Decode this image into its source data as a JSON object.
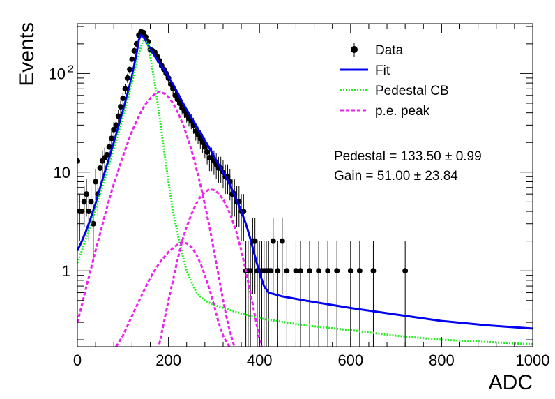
{
  "chart_data": {
    "type": "scatter",
    "xlabel": "ADC",
    "ylabel": "Events",
    "xlim": [
      0,
      1000
    ],
    "ylim": [
      0.17,
      320
    ],
    "yscale": "log",
    "x_ticks": [
      {
        "value": 0,
        "label": "0"
      },
      {
        "value": 200,
        "label": "200"
      },
      {
        "value": 400,
        "label": "400"
      },
      {
        "value": 600,
        "label": "600"
      },
      {
        "value": 800,
        "label": "800"
      },
      {
        "value": 1000,
        "label": "1000"
      }
    ],
    "y_ticks": [
      {
        "value": 1,
        "label": "1",
        "sup": ""
      },
      {
        "value": 10,
        "label": "10",
        "sup": ""
      },
      {
        "value": 100,
        "label": "10",
        "sup": "2"
      }
    ],
    "legend": {
      "position": "top-right",
      "entries": [
        {
          "label": "Data",
          "style": "marker",
          "color": "#000000"
        },
        {
          "label": "Fit",
          "style": "solid",
          "color": "#0000ee"
        },
        {
          "label": "Pedestal CB",
          "style": "dotted",
          "color": "#22ee22"
        },
        {
          "label": "p.e. peak",
          "style": "dashed",
          "color": "#ee22ee"
        }
      ]
    },
    "annotations": [
      {
        "text": "Pedestal = 133.50",
        "pm": "±",
        "value": "0.99"
      },
      {
        "text": "Gain = 51.00",
        "pm": "±",
        "value": "23.84"
      }
    ],
    "data_points": {
      "name": "Data",
      "points": [
        [
          0,
          13
        ],
        [
          5,
          4
        ],
        [
          10,
          4
        ],
        [
          15,
          5
        ],
        [
          20,
          6
        ],
        [
          25,
          4
        ],
        [
          30,
          5
        ],
        [
          35,
          3
        ],
        [
          40,
          8
        ],
        [
          45,
          6
        ],
        [
          50,
          11
        ],
        [
          55,
          13
        ],
        [
          60,
          14
        ],
        [
          65,
          15
        ],
        [
          70,
          18
        ],
        [
          75,
          22
        ],
        [
          80,
          27
        ],
        [
          85,
          30
        ],
        [
          90,
          37
        ],
        [
          95,
          46
        ],
        [
          100,
          56
        ],
        [
          105,
          70
        ],
        [
          110,
          90
        ],
        [
          115,
          110
        ],
        [
          120,
          140
        ],
        [
          125,
          170
        ],
        [
          130,
          200
        ],
        [
          135,
          245
        ],
        [
          140,
          265
        ],
        [
          145,
          260
        ],
        [
          150,
          235
        ],
        [
          155,
          210
        ],
        [
          160,
          175
        ],
        [
          165,
          170
        ],
        [
          170,
          165
        ],
        [
          175,
          150
        ],
        [
          180,
          135
        ],
        [
          185,
          120
        ],
        [
          190,
          110
        ],
        [
          195,
          100
        ],
        [
          200,
          90
        ],
        [
          205,
          78
        ],
        [
          210,
          70
        ],
        [
          215,
          60
        ],
        [
          220,
          55
        ],
        [
          225,
          50
        ],
        [
          230,
          45
        ],
        [
          235,
          42
        ],
        [
          240,
          38
        ],
        [
          245,
          35
        ],
        [
          250,
          33
        ],
        [
          255,
          30
        ],
        [
          260,
          26
        ],
        [
          265,
          24
        ],
        [
          270,
          22
        ],
        [
          275,
          20
        ],
        [
          280,
          18
        ],
        [
          285,
          16
        ],
        [
          290,
          14
        ],
        [
          295,
          14
        ],
        [
          300,
          13
        ],
        [
          305,
          12
        ],
        [
          310,
          11
        ],
        [
          315,
          11
        ],
        [
          320,
          10
        ],
        [
          325,
          9
        ],
        [
          330,
          9
        ],
        [
          335,
          8
        ],
        [
          340,
          6
        ],
        [
          345,
          6
        ],
        [
          350,
          5
        ],
        [
          355,
          5
        ],
        [
          360,
          4
        ],
        [
          365,
          4
        ],
        [
          370,
          1
        ],
        [
          375,
          1
        ],
        [
          380,
          1
        ],
        [
          385,
          2
        ],
        [
          390,
          2
        ],
        [
          395,
          1
        ],
        [
          400,
          1
        ],
        [
          405,
          1
        ],
        [
          410,
          1
        ],
        [
          415,
          1
        ],
        [
          420,
          1
        ],
        [
          425,
          1
        ],
        [
          430,
          2
        ],
        [
          440,
          1
        ],
        [
          450,
          2
        ],
        [
          460,
          1
        ],
        [
          480,
          1
        ],
        [
          490,
          1
        ],
        [
          510,
          1
        ],
        [
          530,
          1
        ],
        [
          550,
          1
        ],
        [
          570,
          1
        ],
        [
          600,
          1
        ],
        [
          620,
          1
        ],
        [
          650,
          1
        ],
        [
          720,
          1
        ]
      ]
    },
    "series": [
      {
        "name": "Fit",
        "points": [
          [
            0,
            1.6
          ],
          [
            10,
            2.0
          ],
          [
            20,
            2.6
          ],
          [
            30,
            3.5
          ],
          [
            40,
            4.8
          ],
          [
            50,
            7.0
          ],
          [
            60,
            10
          ],
          [
            70,
            14
          ],
          [
            80,
            20
          ],
          [
            90,
            29
          ],
          [
            100,
            42
          ],
          [
            110,
            62
          ],
          [
            120,
            95
          ],
          [
            130,
            160
          ],
          [
            135,
            220
          ],
          [
            140,
            245
          ],
          [
            145,
            235
          ],
          [
            150,
            215
          ],
          [
            160,
            178
          ],
          [
            170,
            150
          ],
          [
            180,
            128
          ],
          [
            190,
            110
          ],
          [
            200,
            92
          ],
          [
            210,
            78
          ],
          [
            220,
            64
          ],
          [
            230,
            52
          ],
          [
            240,
            43
          ],
          [
            250,
            36
          ],
          [
            260,
            30
          ],
          [
            270,
            25
          ],
          [
            280,
            21
          ],
          [
            290,
            17.5
          ],
          [
            300,
            14.5
          ],
          [
            310,
            12
          ],
          [
            320,
            10
          ],
          [
            330,
            8.2
          ],
          [
            340,
            6.6
          ],
          [
            350,
            5.2
          ],
          [
            360,
            4
          ],
          [
            370,
            3
          ],
          [
            380,
            2.1
          ],
          [
            390,
            1.4
          ],
          [
            400,
            0.95
          ],
          [
            410,
            0.7
          ],
          [
            420,
            0.6
          ],
          [
            450,
            0.55
          ],
          [
            500,
            0.5
          ],
          [
            600,
            0.42
          ],
          [
            700,
            0.36
          ],
          [
            800,
            0.31
          ],
          [
            900,
            0.28
          ],
          [
            1000,
            0.26
          ]
        ]
      },
      {
        "name": "Pedestal CB",
        "points": [
          [
            0,
            1.2
          ],
          [
            10,
            1.6
          ],
          [
            20,
            2.2
          ],
          [
            30,
            3.0
          ],
          [
            40,
            4.2
          ],
          [
            50,
            6.0
          ],
          [
            60,
            8.5
          ],
          [
            70,
            12
          ],
          [
            80,
            17
          ],
          [
            90,
            25
          ],
          [
            100,
            36
          ],
          [
            110,
            53
          ],
          [
            120,
            82
          ],
          [
            130,
            130
          ],
          [
            140,
            190
          ],
          [
            145,
            215
          ],
          [
            150,
            212
          ],
          [
            155,
            195
          ],
          [
            160,
            150
          ],
          [
            170,
            80
          ],
          [
            180,
            38
          ],
          [
            190,
            17
          ],
          [
            200,
            8
          ],
          [
            210,
            4
          ],
          [
            220,
            2.4
          ],
          [
            230,
            1.5
          ],
          [
            240,
            1.0
          ],
          [
            250,
            0.78
          ],
          [
            260,
            0.62
          ],
          [
            270,
            0.55
          ],
          [
            280,
            0.5
          ],
          [
            300,
            0.45
          ],
          [
            350,
            0.38
          ],
          [
            400,
            0.33
          ],
          [
            500,
            0.28
          ],
          [
            600,
            0.25
          ],
          [
            700,
            0.22
          ],
          [
            800,
            0.2
          ],
          [
            900,
            0.19
          ],
          [
            1000,
            0.18
          ]
        ]
      },
      {
        "name": "p.e. peak",
        "points": [
          [
            0,
            0.3
          ],
          [
            10,
            0.45
          ],
          [
            20,
            0.7
          ],
          [
            30,
            1.05
          ],
          [
            40,
            1.6
          ],
          [
            50,
            2.4
          ],
          [
            60,
            3.6
          ],
          [
            70,
            5.3
          ],
          [
            80,
            7.6
          ],
          [
            90,
            10.5
          ],
          [
            100,
            14.5
          ],
          [
            110,
            19.5
          ],
          [
            120,
            26
          ],
          [
            130,
            33
          ],
          [
            140,
            41
          ],
          [
            150,
            49
          ],
          [
            160,
            56
          ],
          [
            170,
            62
          ],
          [
            180,
            65
          ],
          [
            190,
            63
          ],
          [
            200,
            58
          ],
          [
            210,
            50
          ],
          [
            220,
            41
          ],
          [
            230,
            32
          ],
          [
            240,
            24
          ],
          [
            250,
            17
          ],
          [
            260,
            11.5
          ],
          [
            270,
            7.5
          ],
          [
            280,
            4.7
          ],
          [
            290,
            2.8
          ],
          [
            300,
            1.6
          ],
          [
            310,
            0.9
          ],
          [
            320,
            0.5
          ],
          [
            330,
            0.3
          ],
          [
            340,
            0.2
          ],
          [
            345,
            0.17
          ]
        ]
      },
      {
        "name": "p.e. peak",
        "points": [
          [
            180,
            0.18
          ],
          [
            190,
            0.3
          ],
          [
            200,
            0.5
          ],
          [
            210,
            0.8
          ],
          [
            220,
            1.3
          ],
          [
            230,
            2.0
          ],
          [
            240,
            2.8
          ],
          [
            250,
            3.7
          ],
          [
            260,
            4.7
          ],
          [
            270,
            5.6
          ],
          [
            280,
            6.3
          ],
          [
            290,
            6.7
          ],
          [
            300,
            6.6
          ],
          [
            310,
            6.1
          ],
          [
            320,
            5.3
          ],
          [
            330,
            4.3
          ],
          [
            340,
            3.3
          ],
          [
            350,
            2.4
          ],
          [
            360,
            1.6
          ],
          [
            370,
            1.0
          ],
          [
            380,
            0.6
          ],
          [
            390,
            0.35
          ],
          [
            400,
            0.2
          ],
          [
            405,
            0.17
          ]
        ]
      },
      {
        "name": "p.e. peak",
        "points": [
          [
            85,
            0.17
          ],
          [
            100,
            0.22
          ],
          [
            120,
            0.35
          ],
          [
            140,
            0.55
          ],
          [
            160,
            0.85
          ],
          [
            180,
            1.2
          ],
          [
            200,
            1.55
          ],
          [
            220,
            1.85
          ],
          [
            230,
            1.95
          ],
          [
            240,
            1.9
          ],
          [
            250,
            1.75
          ],
          [
            260,
            1.5
          ],
          [
            270,
            1.2
          ],
          [
            280,
            0.9
          ],
          [
            290,
            0.65
          ],
          [
            300,
            0.45
          ],
          [
            310,
            0.3
          ],
          [
            320,
            0.22
          ],
          [
            330,
            0.18
          ],
          [
            335,
            0.17
          ]
        ]
      }
    ]
  }
}
